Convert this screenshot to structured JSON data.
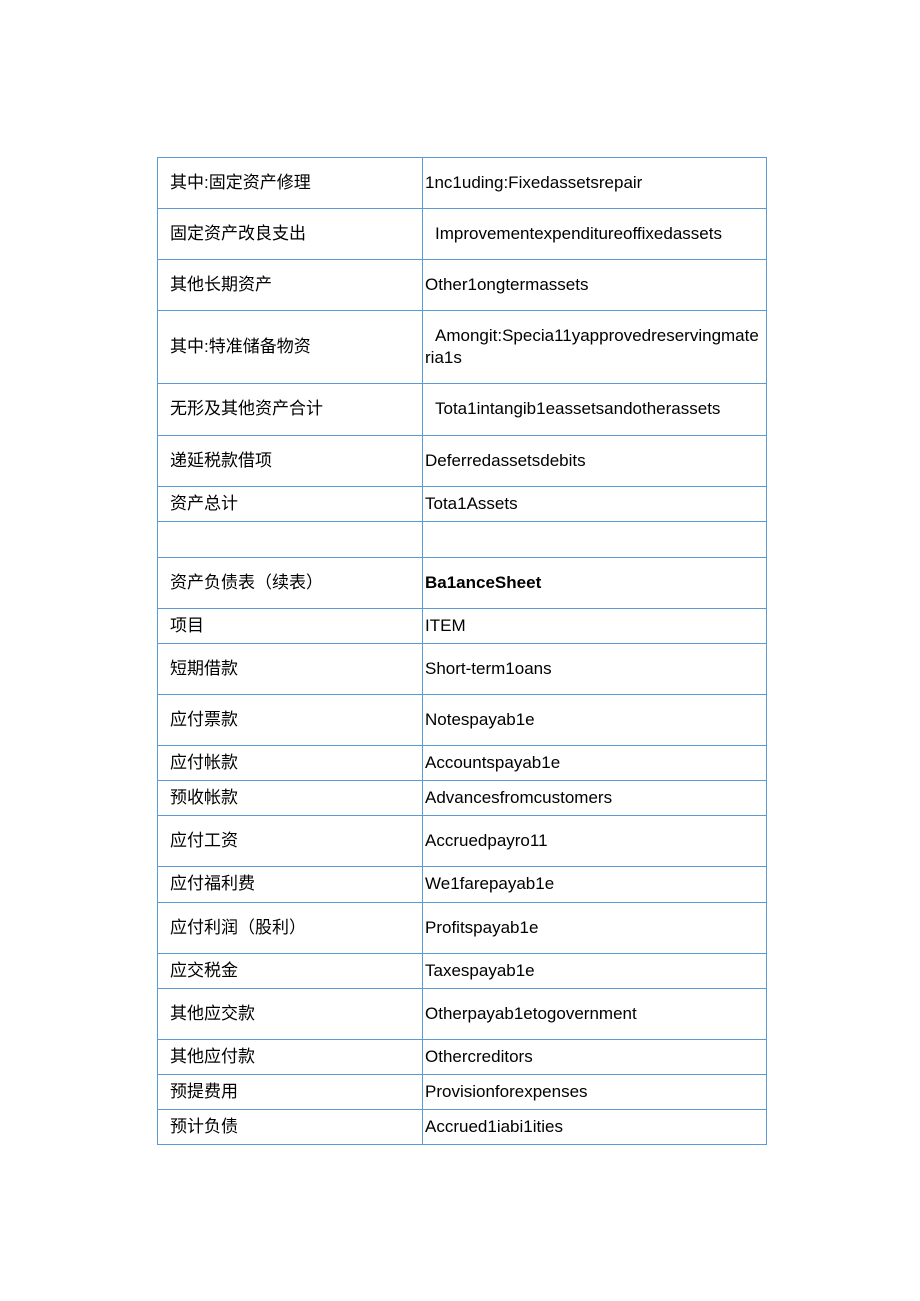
{
  "table": {
    "border_color": "#5b9bd5",
    "text_color": "#000000",
    "font_size": 17,
    "rows": [
      {
        "left": "其中:固定资产修理",
        "right": "1nc1uding:Fixedassetsrepair",
        "right_indent": false,
        "bold": false,
        "height": "tall"
      },
      {
        "left": "固定资产改良支出",
        "right": "Improvementexpenditureoffixedassets",
        "right_indent": true,
        "bold": false,
        "height": "tall"
      },
      {
        "left": "其他长期资产",
        "right": "Other1ongtermassets",
        "right_indent": false,
        "bold": false,
        "height": "tall"
      },
      {
        "left": "其中:特准储备物资",
        "right": "Amongit:Specia11yapprovedreservingmateria1s",
        "right_indent": true,
        "bold": false,
        "height": "tall"
      },
      {
        "left": "无形及其他资产合计",
        "right": "Tota1intangib1eassetsandotherassets",
        "right_indent": true,
        "bold": false,
        "height": "tall"
      },
      {
        "left": "递延税款借项",
        "right": "Deferredassetsdebits",
        "right_indent": false,
        "bold": false,
        "height": "tall"
      },
      {
        "left": "资产总计",
        "right": "Tota1Assets",
        "right_indent": false,
        "bold": false,
        "height": "short"
      },
      {
        "left": "",
        "right": "",
        "right_indent": false,
        "bold": false,
        "height": "empty"
      },
      {
        "left": "资产负债表（续表）",
        "right": "Ba1anceSheet",
        "right_indent": false,
        "bold": true,
        "height": "tall"
      },
      {
        "left": "项目",
        "right": "ITEM",
        "right_indent": false,
        "bold": false,
        "height": "short"
      },
      {
        "left": "短期借款",
        "right": "Short-term1oans",
        "right_indent": false,
        "bold": false,
        "height": "tall"
      },
      {
        "left": "应付票款",
        "right": "Notespayab1e",
        "right_indent": false,
        "bold": false,
        "height": "tall"
      },
      {
        "left": "应付帐款",
        "right": "Accountspayab1e",
        "right_indent": false,
        "bold": false,
        "height": "short"
      },
      {
        "left": "预收帐款",
        "right": "Advancesfromcustomers",
        "right_indent": false,
        "bold": false,
        "height": "short"
      },
      {
        "left": "应付工资",
        "right": "Accruedpayro11",
        "right_indent": false,
        "bold": false,
        "height": "tall"
      },
      {
        "left": "应付福利费",
        "right": "We1farepayab1e",
        "right_indent": false,
        "bold": false,
        "height": "short"
      },
      {
        "left": "应付利润（股利）",
        "right": "Profitspayab1e",
        "right_indent": false,
        "bold": false,
        "height": "tall"
      },
      {
        "left": "应交税金",
        "right": "Taxespayab1e",
        "right_indent": false,
        "bold": false,
        "height": "short"
      },
      {
        "left": "其他应交款",
        "right": "Otherpayab1etogovernment",
        "right_indent": false,
        "bold": false,
        "height": "tall"
      },
      {
        "left": "其他应付款",
        "right": "Othercreditors",
        "right_indent": false,
        "bold": false,
        "height": "short"
      },
      {
        "left": "预提费用",
        "right": "Provisionforexpenses",
        "right_indent": false,
        "bold": false,
        "height": "short"
      },
      {
        "left": "预计负债",
        "right": "Accrued1iabi1ities",
        "right_indent": false,
        "bold": false,
        "height": "short"
      }
    ]
  }
}
